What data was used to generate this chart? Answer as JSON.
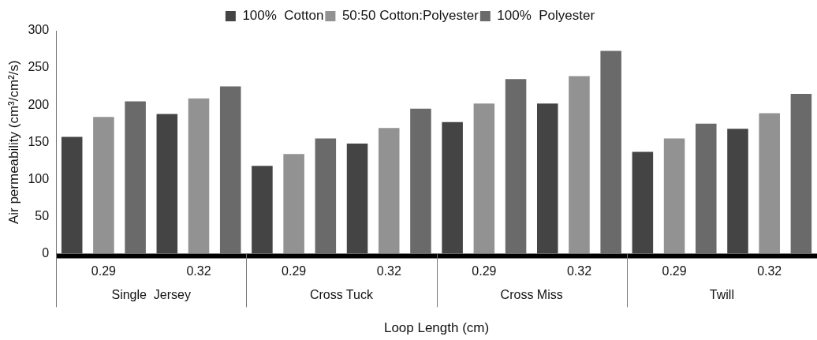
{
  "chart_data": {
    "type": "bar",
    "xlabel": "Loop Length (cm)",
    "ylabel": "Air permeability (cm³/cm²/s)",
    "categories": [
      "0.29",
      "0.32",
      "0.29",
      "0.32",
      "0.29",
      "0.32",
      "0.29",
      "0.32"
    ],
    "annotations": [
      "Single  Jersey",
      "Cross Tuck",
      "Cross Miss",
      "Twill"
    ],
    "series": [
      {
        "name": "100%  Cotton",
        "color": "#444444",
        "values": [
          157,
          188,
          118,
          148,
          177,
          202,
          137,
          168
        ]
      },
      {
        "name": "50:50 Cotton:Polyester",
        "color": "#929292",
        "values": [
          184,
          209,
          134,
          169,
          202,
          239,
          155,
          189
        ]
      },
      {
        "name": "100%  Polyester",
        "color": "#6a6a6a",
        "values": [
          205,
          225,
          155,
          195,
          235,
          273,
          175,
          215
        ]
      }
    ],
    "ylim": [
      0,
      300
    ],
    "yticks": [
      0,
      50,
      100,
      150,
      200,
      250,
      300
    ],
    "grid": false,
    "legend": "top"
  }
}
